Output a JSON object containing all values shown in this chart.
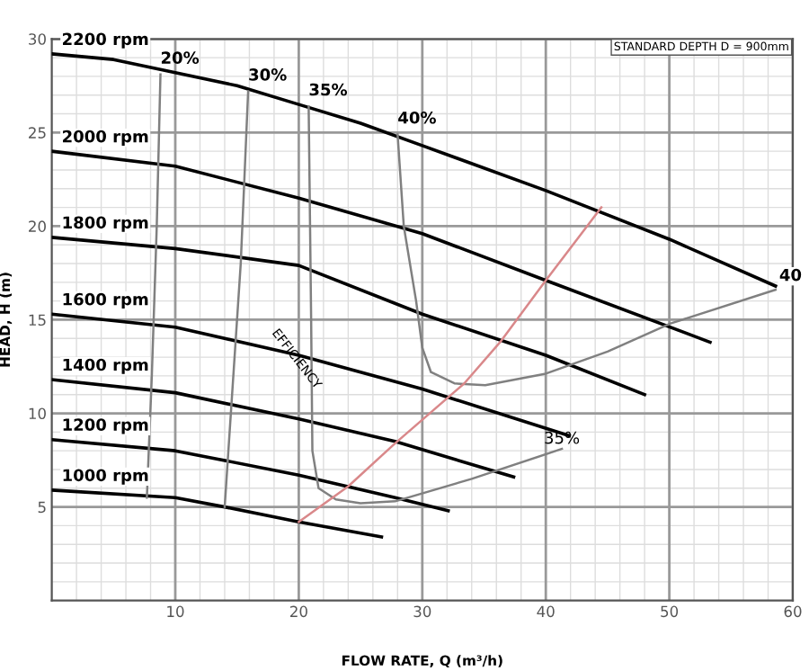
{
  "chart_data": {
    "type": "line",
    "xlabel": "FLOW RATE, Q (m³/h)",
    "ylabel": "HEAD, H (m)",
    "xlim": [
      0,
      60
    ],
    "ylim": [
      0,
      30
    ],
    "xticks": [
      10,
      20,
      30,
      40,
      50,
      60
    ],
    "yticks": [
      5,
      10,
      15,
      20,
      25,
      30
    ],
    "grid": true,
    "legend": false,
    "marker": "none",
    "line_style": "solid",
    "series": [
      {
        "name": "2200 rpm",
        "color": "#000000",
        "x": [
          0,
          5,
          10,
          15,
          20,
          25,
          30,
          40,
          50,
          58.6
        ],
        "values": [
          29.2,
          28.9,
          28.2,
          27.5,
          26.5,
          25.5,
          24.3,
          21.9,
          19.3,
          16.8
        ]
      },
      {
        "name": "2000 rpm",
        "color": "#000000",
        "x": [
          0,
          10,
          20,
          30,
          40,
          53.3
        ],
        "values": [
          24.0,
          23.2,
          21.5,
          19.6,
          17.1,
          13.8
        ]
      },
      {
        "name": "1800 rpm",
        "color": "#000000",
        "x": [
          0,
          10,
          20,
          30,
          40,
          48
        ],
        "values": [
          19.4,
          18.8,
          17.9,
          15.3,
          13.1,
          11.0
        ]
      },
      {
        "name": "1600 rpm",
        "color": "#000000",
        "x": [
          0,
          10,
          20,
          30,
          41.9
        ],
        "values": [
          15.3,
          14.6,
          13.1,
          11.3,
          8.8
        ]
      },
      {
        "name": "1400 rpm",
        "color": "#000000",
        "x": [
          0,
          10,
          20,
          27.8,
          37.4
        ],
        "values": [
          11.8,
          11.1,
          9.7,
          8.5,
          6.6
        ]
      },
      {
        "name": "1200 rpm",
        "color": "#000000",
        "x": [
          0,
          10,
          20,
          27.8,
          32.1
        ],
        "values": [
          8.6,
          8.0,
          6.7,
          5.5,
          4.8
        ]
      },
      {
        "name": "1000 rpm",
        "color": "#000000",
        "x": [
          0,
          10,
          14,
          20,
          26.7
        ],
        "values": [
          5.9,
          5.5,
          5.0,
          4.2,
          3.4
        ]
      },
      {
        "name": "20%",
        "color": "#808080",
        "x": [
          8.8,
          8.5,
          8.1,
          7.7
        ],
        "values": [
          28.1,
          20,
          12,
          5.5
        ]
      },
      {
        "name": "30%",
        "color": "#808080",
        "x": [
          15.9,
          15.3,
          14.0
        ],
        "values": [
          27.2,
          18,
          5.0
        ]
      },
      {
        "name": "35%",
        "color": "#808080",
        "x": [
          20.8,
          21.0,
          21.1,
          21.6,
          23,
          25,
          27.8,
          34,
          41.3
        ],
        "values": [
          26.4,
          15,
          8,
          6.0,
          5.4,
          5.2,
          5.3,
          6.5,
          8.1
        ]
      },
      {
        "name": "40%",
        "color": "#808080",
        "x": [
          28,
          28.5,
          29.5,
          30.0,
          30.7,
          32.6,
          35.1,
          39.9,
          45,
          50.1,
          58.6
        ],
        "values": [
          24.9,
          20,
          16,
          13.5,
          12.2,
          11.6,
          11.5,
          12.1,
          13.3,
          14.8,
          16.6
        ]
      },
      {
        "color": "#d9888a",
        "x": [
          20,
          24,
          27.8,
          33.4,
          36.3,
          40,
          44.5
        ],
        "values": [
          4.2,
          6.1,
          8.4,
          11.6,
          13.8,
          17.1,
          21.0
        ]
      }
    ],
    "annotations": [
      {
        "text": "35%",
        "x": 41.3,
        "y": 8.1
      },
      {
        "text": "40",
        "x": 58.6,
        "y": 16.6
      },
      {
        "text": "EFFICIENCY",
        "x": 19.8,
        "y": 12.9
      },
      "STANDARD DEPTH D = 900mm"
    ]
  }
}
